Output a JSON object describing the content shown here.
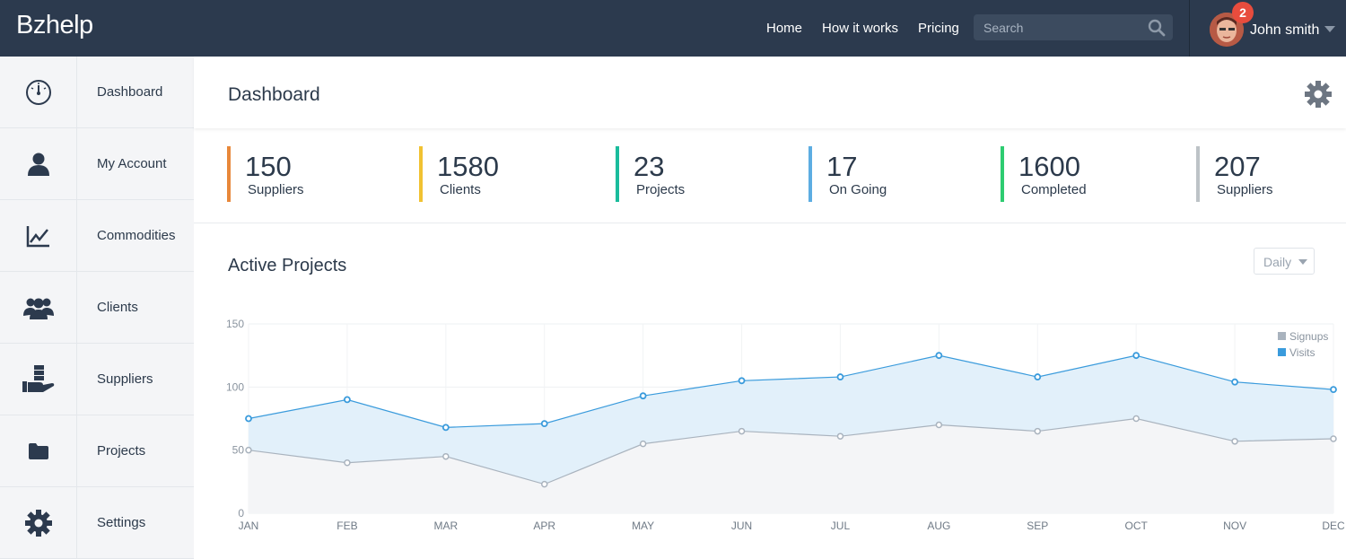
{
  "app": {
    "logo_text": "Bzhelp"
  },
  "nav": {
    "items": [
      "Home",
      "How it works",
      "Pricing"
    ]
  },
  "search": {
    "placeholder": "Search"
  },
  "user": {
    "name": "John smith",
    "notifications": "2"
  },
  "sidebar": {
    "items": [
      {
        "label": "Dashboard",
        "icon": "gauge-icon"
      },
      {
        "label": "My Account",
        "icon": "user-icon"
      },
      {
        "label": "Commodities",
        "icon": "line-chart-icon"
      },
      {
        "label": "Clients",
        "icon": "users-icon"
      },
      {
        "label": "Suppliers",
        "icon": "supplier-icon"
      },
      {
        "label": "Projects",
        "icon": "folder-icon"
      },
      {
        "label": "Settings",
        "icon": "gear-icon"
      }
    ]
  },
  "page": {
    "title": "Dashboard"
  },
  "stats": [
    {
      "value": "150",
      "label": "Suppliers",
      "color": "#e8883a"
    },
    {
      "value": "1580",
      "label": "Clients",
      "color": "#f1c232"
    },
    {
      "value": "23",
      "label": "Projects",
      "color": "#1abc9c"
    },
    {
      "value": "17",
      "label": "On Going",
      "color": "#5dade2"
    },
    {
      "value": "1600",
      "label": "Completed",
      "color": "#2ecc71"
    },
    {
      "value": "207",
      "label": "Suppliers",
      "color": "#bdc3c7"
    }
  ],
  "chart": {
    "title": "Active Projects",
    "range": "Daily"
  },
  "chart_data": {
    "type": "area",
    "categories": [
      "JAN",
      "FEB",
      "MAR",
      "APR",
      "MAY",
      "JUN",
      "JUL",
      "AUG",
      "SEP",
      "OCT",
      "NOV",
      "DEC"
    ],
    "series": [
      {
        "name": "Signups",
        "color": "#a9b3be",
        "values": [
          50,
          40,
          45,
          23,
          55,
          65,
          61,
          70,
          65,
          75,
          57,
          59
        ]
      },
      {
        "name": "Visits",
        "color": "#3a9bdc",
        "values": [
          75,
          90,
          68,
          71,
          93,
          105,
          108,
          125,
          108,
          125,
          104,
          98
        ]
      }
    ],
    "ylim": [
      0,
      150
    ],
    "yticks": [
      0,
      50,
      100,
      150
    ],
    "legend": "top-right",
    "grid": true
  }
}
